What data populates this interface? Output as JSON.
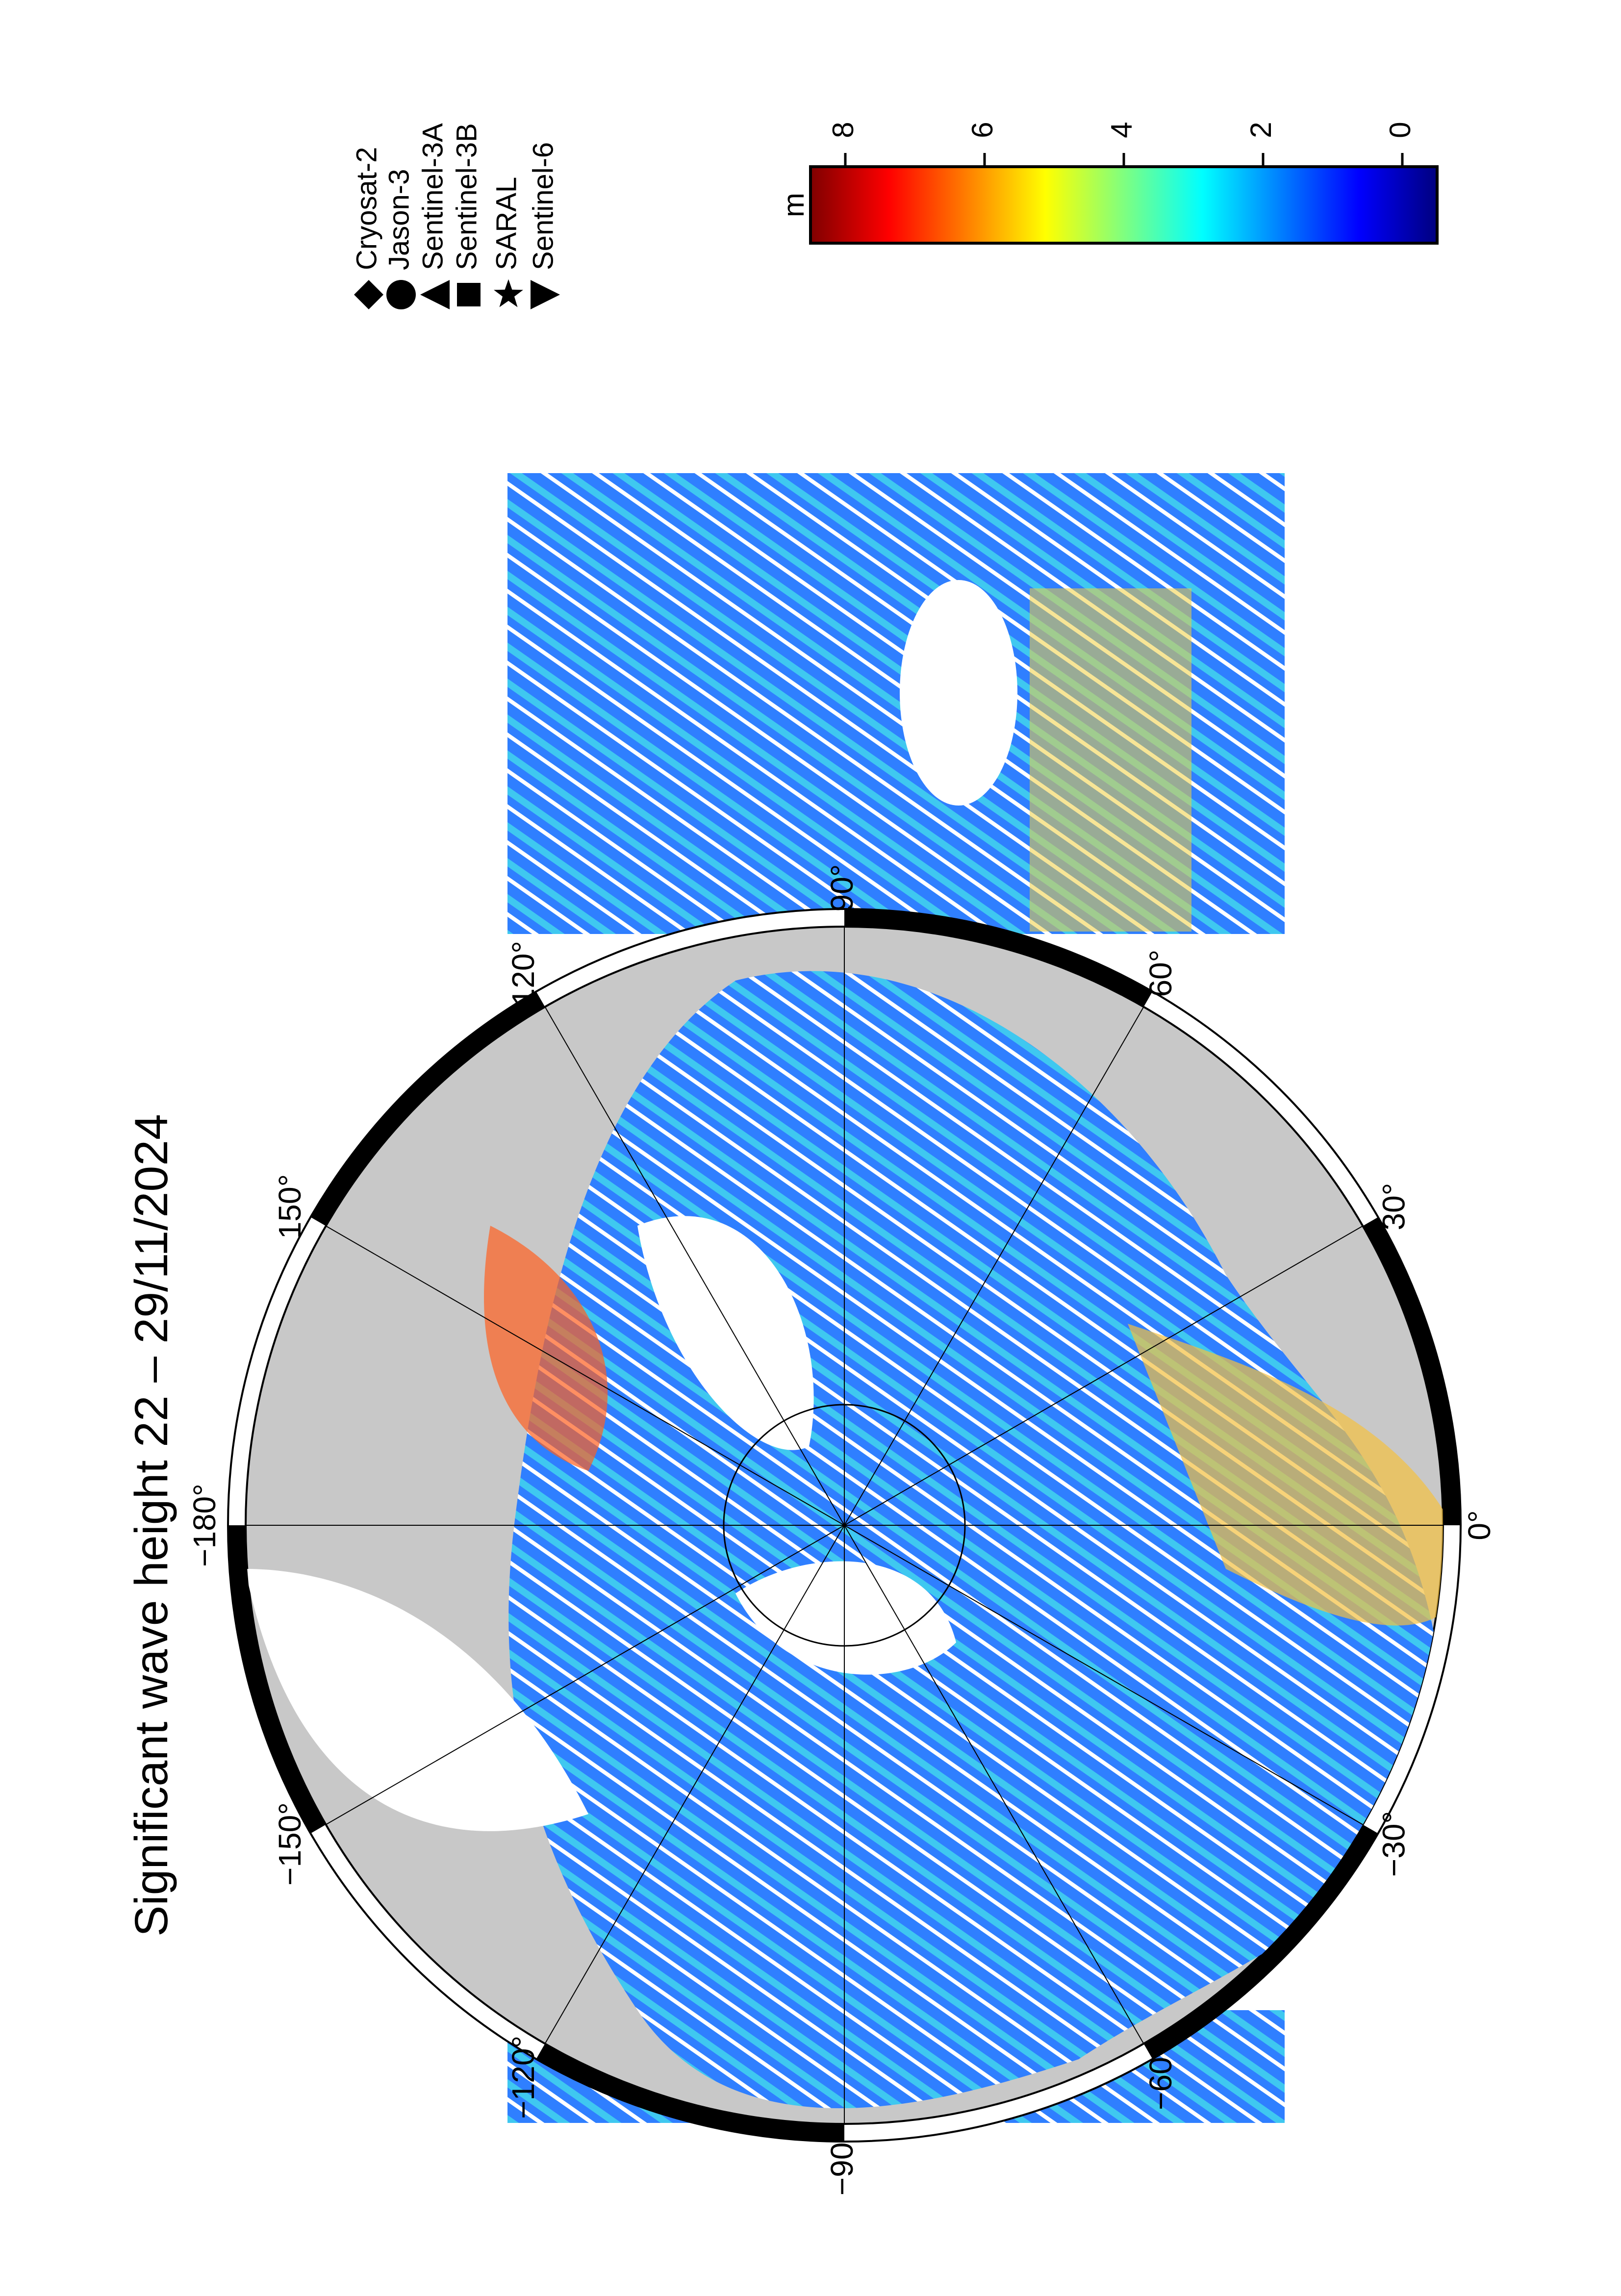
{
  "title": "Significant wave height 22 – 29/11/2024",
  "legend": [
    {
      "name": "Cryosat-2",
      "marker": "diamond"
    },
    {
      "name": "Jason-3",
      "marker": "circle"
    },
    {
      "name": "Sentinel-3A",
      "marker": "triangle-left"
    },
    {
      "name": "Sentinel-3B",
      "marker": "square"
    },
    {
      "name": "SARAL",
      "marker": "star"
    },
    {
      "name": "Sentinel-6",
      "marker": "triangle-right"
    }
  ],
  "colorbar": {
    "unit": "m",
    "clim": [
      -0.5,
      8.5
    ],
    "ticks": [
      0,
      2,
      4,
      6,
      8
    ],
    "colormap": [
      "#00007f",
      "#0000ff",
      "#007fff",
      "#00ffff",
      "#7fff7f",
      "#ffff00",
      "#ff7f00",
      "#ff0000",
      "#7f0000"
    ]
  },
  "map": {
    "longitude_labels": [
      {
        "value": 0,
        "label": "0°"
      },
      {
        "value": 30,
        "label": "30°"
      },
      {
        "value": 60,
        "label": "60°"
      },
      {
        "value": 90,
        "label": "90°"
      },
      {
        "value": 120,
        "label": "120°"
      },
      {
        "value": 150,
        "label": "150°"
      },
      {
        "value": 180,
        "label": "−180°"
      },
      {
        "value": -150,
        "label": "−150°"
      },
      {
        "value": -120,
        "label": "−120°"
      },
      {
        "value": -90,
        "label": "−90°"
      },
      {
        "value": -60,
        "label": "−60°"
      },
      {
        "value": -30,
        "label": "−30°"
      }
    ]
  }
}
